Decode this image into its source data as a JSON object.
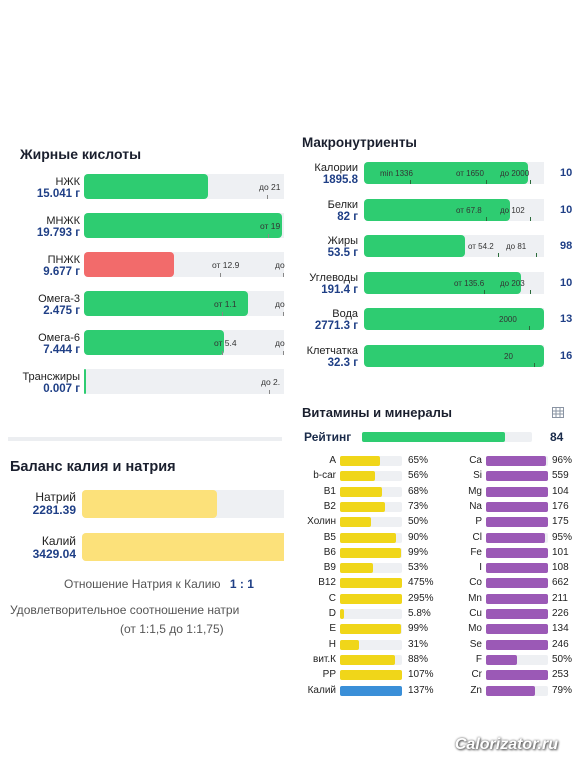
{
  "fatty_acids": {
    "title": "Жирные кислоты",
    "rows": [
      {
        "name": "НЖК",
        "value": "15.041 г",
        "fill": 0.62,
        "color": "#2ecc71",
        "marks": [
          {
            "t": "до 21",
            "x": 175
          }
        ]
      },
      {
        "name": "МНЖК",
        "value": "19.793 г",
        "fill": 0.99,
        "color": "#2ecc71",
        "marks": [
          {
            "t": "от 19",
            "x": 176
          }
        ]
      },
      {
        "name": "ПНЖК",
        "value": "9.677 г",
        "fill": 0.45,
        "color": "#f26b6b",
        "marks": [
          {
            "t": "от 12.9",
            "x": 128
          },
          {
            "t": "до",
            "x": 191
          }
        ]
      },
      {
        "name": "Омега-3",
        "value": "2.475 г",
        "fill": 0.82,
        "color": "#2ecc71",
        "marks": [
          {
            "t": "от 1.1",
            "x": 130
          },
          {
            "t": "до",
            "x": 191
          }
        ]
      },
      {
        "name": "Омега-6",
        "value": "7.444 г",
        "fill": 0.7,
        "color": "#2ecc71",
        "marks": [
          {
            "t": "от 5.4",
            "x": 130
          },
          {
            "t": "до",
            "x": 191
          }
        ]
      },
      {
        "name": "Трансжиры",
        "value": "0.007 г",
        "fill": 0.01,
        "color": "#2ecc71",
        "marks": [
          {
            "t": "до 2.",
            "x": 177
          }
        ]
      }
    ]
  },
  "macros": {
    "title": "Макронутриенты",
    "rows": [
      {
        "name": "Калории",
        "value": "1895.8",
        "fill": 0.91,
        "marks": [
          {
            "t": "min 1336",
            "x": 46
          },
          {
            "t": "от 1650",
            "x": 122
          },
          {
            "t": "до 2000",
            "x": 166
          }
        ],
        "side": "10"
      },
      {
        "name": "Белки",
        "value": "82 г",
        "fill": 0.81,
        "marks": [
          {
            "t": "от 67.8",
            "x": 122
          },
          {
            "t": "до 102",
            "x": 166
          }
        ],
        "side": "10"
      },
      {
        "name": "Жиры",
        "value": "53.5 г",
        "fill": 0.56,
        "marks": [
          {
            "t": "от 54.2",
            "x": 134
          },
          {
            "t": "до 81",
            "x": 172
          }
        ],
        "side": "98"
      },
      {
        "name": "Углеводы",
        "value": "191.4 г",
        "fill": 0.87,
        "marks": [
          {
            "t": "от 135.6",
            "x": 120
          },
          {
            "t": "до 203",
            "x": 166
          }
        ],
        "side": "10"
      },
      {
        "name": "Вода",
        "value": "2771.3 г",
        "fill": 1.0,
        "marks": [
          {
            "t": "2000",
            "x": 165
          }
        ],
        "side": "13"
      },
      {
        "name": "Клетчатка",
        "value": "32.3 г",
        "fill": 1.0,
        "marks": [
          {
            "t": "20",
            "x": 170
          }
        ],
        "side": "16"
      }
    ]
  },
  "vitamins": {
    "title": "Витамины и минералы",
    "rating_label": "Рейтинг",
    "rating_value": "84",
    "rating_fill": 0.84,
    "left": [
      {
        "name": "A",
        "pct": "65%",
        "fill": 0.65,
        "color": "#f0d619"
      },
      {
        "name": "b-car",
        "pct": "56%",
        "fill": 0.56,
        "color": "#f0d619"
      },
      {
        "name": "B1",
        "pct": "68%",
        "fill": 0.68,
        "color": "#f0d619"
      },
      {
        "name": "B2",
        "pct": "73%",
        "fill": 0.73,
        "color": "#f0d619"
      },
      {
        "name": "Холин",
        "pct": "50%",
        "fill": 0.5,
        "color": "#f0d619"
      },
      {
        "name": "B5",
        "pct": "90%",
        "fill": 0.9,
        "color": "#f0d619"
      },
      {
        "name": "B6",
        "pct": "99%",
        "fill": 0.99,
        "color": "#f0d619"
      },
      {
        "name": "B9",
        "pct": "53%",
        "fill": 0.53,
        "color": "#f0d619"
      },
      {
        "name": "B12",
        "pct": "475%",
        "fill": 1.0,
        "color": "#f0d619"
      },
      {
        "name": "C",
        "pct": "295%",
        "fill": 1.0,
        "color": "#f0d619"
      },
      {
        "name": "D",
        "pct": "5.8%",
        "fill": 0.058,
        "color": "#f0d619"
      },
      {
        "name": "E",
        "pct": "99%",
        "fill": 0.99,
        "color": "#f0d619"
      },
      {
        "name": "H",
        "pct": "31%",
        "fill": 0.31,
        "color": "#f0d619"
      },
      {
        "name": "вит.К",
        "pct": "88%",
        "fill": 0.88,
        "color": "#f0d619"
      },
      {
        "name": "PP",
        "pct": "107%",
        "fill": 1.0,
        "color": "#f0d619"
      },
      {
        "name": "Калий",
        "pct": "137%",
        "fill": 1.0,
        "color": "#3a8fd8"
      }
    ],
    "right": [
      {
        "name": "Ca",
        "pct": "96%",
        "fill": 0.96,
        "color": "#9b59b6"
      },
      {
        "name": "Si",
        "pct": "559",
        "fill": 1.0,
        "color": "#9b59b6"
      },
      {
        "name": "Mg",
        "pct": "104",
        "fill": 1.0,
        "color": "#9b59b6"
      },
      {
        "name": "Na",
        "pct": "176",
        "fill": 1.0,
        "color": "#9b59b6"
      },
      {
        "name": "P",
        "pct": "175",
        "fill": 1.0,
        "color": "#9b59b6"
      },
      {
        "name": "Cl",
        "pct": "95%",
        "fill": 0.95,
        "color": "#9b59b6"
      },
      {
        "name": "Fe",
        "pct": "101",
        "fill": 1.0,
        "color": "#9b59b6"
      },
      {
        "name": "I",
        "pct": "108",
        "fill": 1.0,
        "color": "#9b59b6"
      },
      {
        "name": "Co",
        "pct": "662",
        "fill": 1.0,
        "color": "#9b59b6"
      },
      {
        "name": "Mn",
        "pct": "211",
        "fill": 1.0,
        "color": "#9b59b6"
      },
      {
        "name": "Cu",
        "pct": "226",
        "fill": 1.0,
        "color": "#9b59b6"
      },
      {
        "name": "Mo",
        "pct": "134",
        "fill": 1.0,
        "color": "#9b59b6"
      },
      {
        "name": "Se",
        "pct": "246",
        "fill": 1.0,
        "color": "#9b59b6"
      },
      {
        "name": "F",
        "pct": "50%",
        "fill": 0.5,
        "color": "#9b59b6"
      },
      {
        "name": "Cr",
        "pct": "253",
        "fill": 1.0,
        "color": "#9b59b6"
      },
      {
        "name": "Zn",
        "pct": "79%",
        "fill": 0.79,
        "color": "#9b59b6"
      }
    ]
  },
  "balance": {
    "title": "Баланс калия и натрия",
    "sodium_label": "Натрий",
    "sodium_value": "2281.39",
    "sodium_fill": 0.67,
    "potassium_label": "Калий",
    "potassium_value": "3429.04",
    "potassium_fill": 1.0,
    "ratio_text": "Отношение Натрия к Калию",
    "ratio_value": "1 : 1",
    "note_line1": "Удовлетворительное соотношение натри",
    "note_line2": "(от 1:1,5 до 1:1,75)"
  },
  "watermark": "Calorizator.ru",
  "colors": {
    "green": "#2ecc71",
    "red": "#f26b6b",
    "yellow": "#fce17a",
    "value_blue": "#1f3f86"
  }
}
